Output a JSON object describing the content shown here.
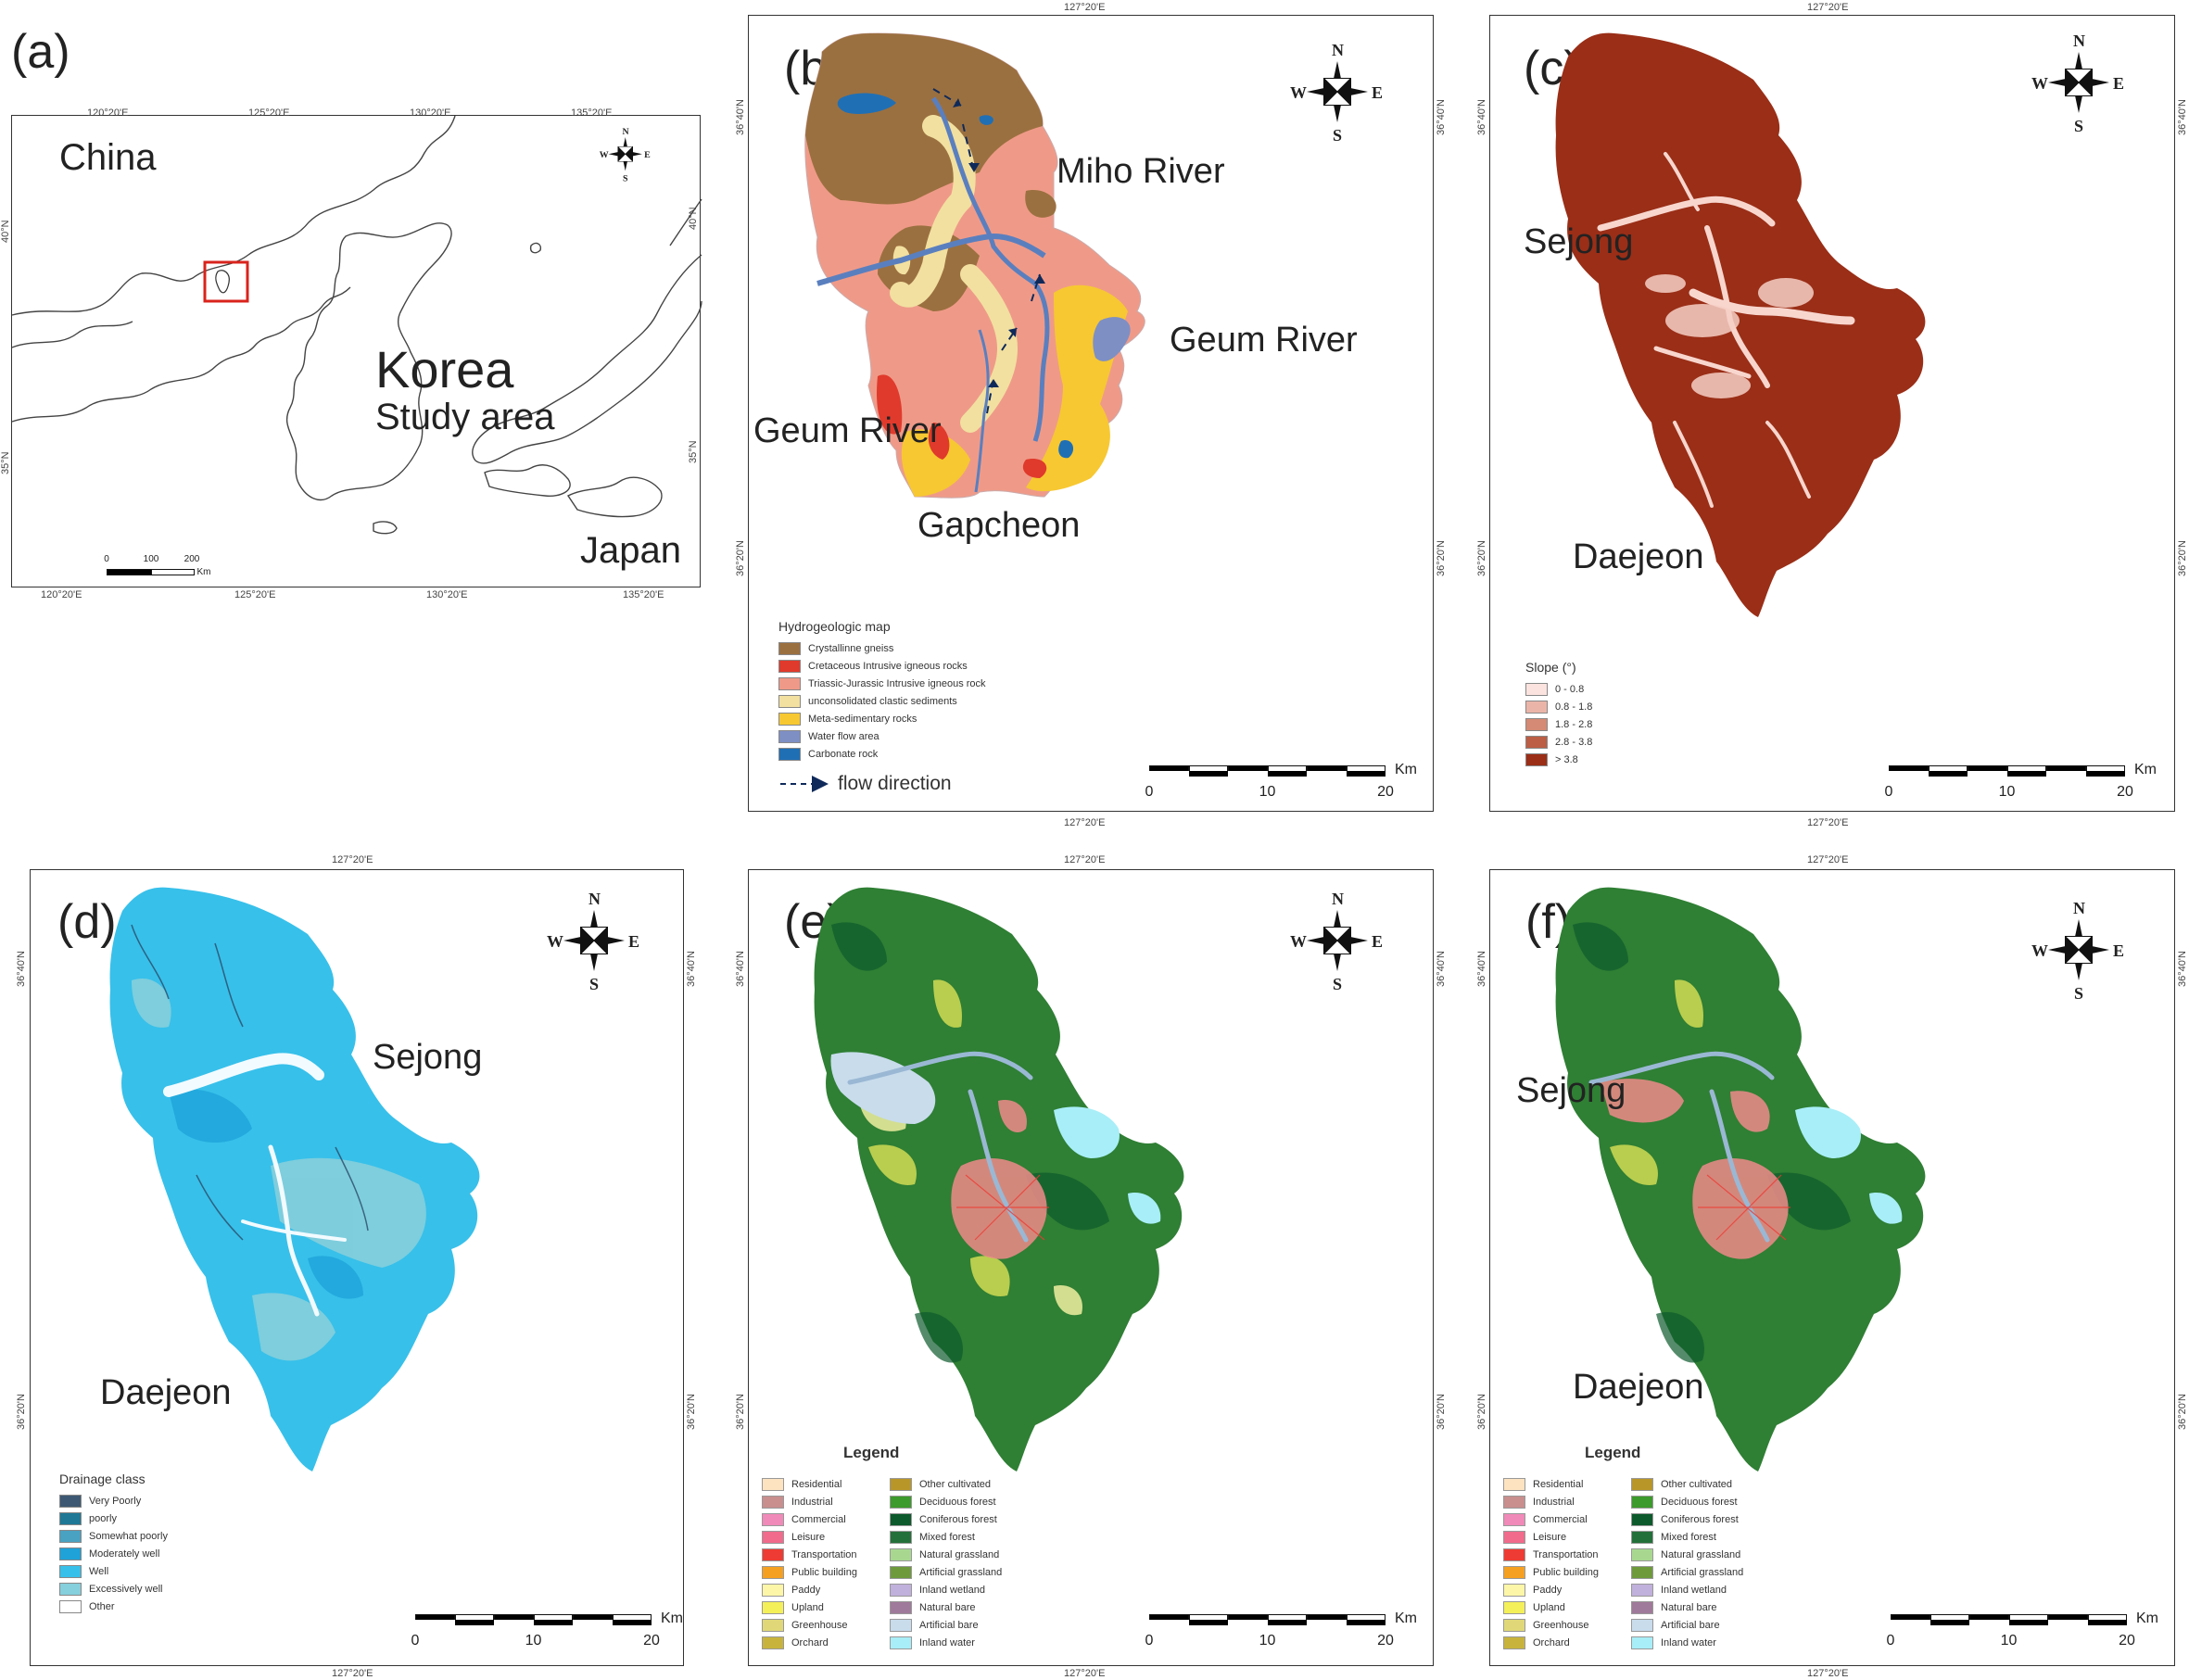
{
  "panels": {
    "a": {
      "label": "(a)",
      "places": {
        "china": "China",
        "korea": "Korea",
        "study_area": "Study area",
        "japan": "Japan"
      },
      "coords_top": [
        "120°20'E",
        "125°20'E",
        "130°20'E",
        "135°20'E"
      ],
      "coords_bottom": [
        "120°20'E",
        "125°20'E",
        "130°20'E",
        "135°20'E"
      ],
      "coords_left": [
        "40°N",
        "35°N"
      ],
      "coords_right": [
        "40°N",
        "35°N"
      ],
      "scale": {
        "ticks": [
          "0",
          "100",
          "200"
        ],
        "unit": "Km"
      }
    },
    "b": {
      "label": "(b)",
      "coord_top": "127°20'E",
      "coord_bottom": "127°20'E",
      "coords_left": [
        "36°40'N",
        "36°20'N"
      ],
      "coords_right": [
        "36°40'N",
        "36°20'N"
      ],
      "rivers": {
        "miho": "Miho River",
        "geum_east": "Geum River",
        "geum_west": "Geum River",
        "gapcheon": "Gapcheon"
      },
      "legend_title": "Hydrogeologic map",
      "legend": [
        {
          "label": "Crystallinne gneiss",
          "color": "#9b7040"
        },
        {
          "label": "Cretaceous Intrusive igneous rocks",
          "color": "#e03a2c"
        },
        {
          "label": "Triassic-Jurassic Intrusive igneous rock",
          "color": "#ef9a88"
        },
        {
          "label": "unconsolidated clastic sediments",
          "color": "#f2e0a0"
        },
        {
          "label": "Meta-sedimentary rocks",
          "color": "#f7c832"
        },
        {
          "label": "Water flow area",
          "color": "#7e8fc4"
        },
        {
          "label": "Carbonate rock",
          "color": "#1f6fb5"
        }
      ],
      "flow_label": "flow direction",
      "scale": {
        "ticks": [
          "0",
          "10",
          "20"
        ],
        "unit": "Km"
      }
    },
    "c": {
      "label": "(c)",
      "coord_top": "127°20'E",
      "coord_bottom": "127°20'E",
      "coords_left": [
        "36°40'N",
        "36°20'N"
      ],
      "coords_right": [
        "36°40'N",
        "36°20'N"
      ],
      "cities": {
        "sejong": "Sejong",
        "daejeon": "Daejeon"
      },
      "legend_title": "Slope (°)",
      "legend": [
        {
          "label": "0 - 0.8",
          "color": "#fbe3df"
        },
        {
          "label": "0.8 - 1.8",
          "color": "#eab5a8"
        },
        {
          "label": "1.8 - 2.8",
          "color": "#d48a74"
        },
        {
          "label": "2.8 - 3.8",
          "color": "#bb5e45"
        },
        {
          "label": "> 3.8",
          "color": "#9a2e17"
        }
      ],
      "scale": {
        "ticks": [
          "0",
          "10",
          "20"
        ],
        "unit": "Km"
      }
    },
    "d": {
      "label": "(d)",
      "coord_top": "127°20'E",
      "coord_bottom": "127°20'E",
      "coords_left": [
        "36°40'N",
        "36°20'N"
      ],
      "coords_right": [
        "36°40'N",
        "36°20'N"
      ],
      "cities": {
        "sejong": "Sejong",
        "daejeon": "Daejeon"
      },
      "legend_title": "Drainage class",
      "legend": [
        {
          "label": "Very Poorly",
          "color": "#3d5872"
        },
        {
          "label": "poorly",
          "color": "#1f7896"
        },
        {
          "label": "Somewhat poorly",
          "color": "#4aa2c2"
        },
        {
          "label": "Moderately well",
          "color": "#1ea2d8"
        },
        {
          "label": "Well",
          "color": "#37c0ea"
        },
        {
          "label": "Excessively well",
          "color": "#86cfdc"
        },
        {
          "label": "Other",
          "color": "#ffffff"
        }
      ],
      "scale": {
        "ticks": [
          "0",
          "10",
          "20"
        ],
        "unit": "Km"
      }
    },
    "e": {
      "label": "(e)",
      "coord_top": "127°20'E",
      "coord_bottom": "127°20'E",
      "coords_left": [
        "36°40'N",
        "36°20'N"
      ],
      "coords_right": [
        "36°40'N",
        "36°20'N"
      ],
      "scale": {
        "ticks": [
          "0",
          "10",
          "20"
        ],
        "unit": "Km"
      }
    },
    "f": {
      "label": "(f)",
      "coord_top": "127°20'E",
      "coord_bottom": "127°20'E",
      "coords_left": [
        "36°40'N",
        "36°20'N"
      ],
      "coords_right": [
        "36°40'N",
        "36°20'N"
      ],
      "cities": {
        "sejong": "Sejong",
        "daejeon": "Daejeon"
      },
      "scale": {
        "ticks": [
          "0",
          "10",
          "20"
        ],
        "unit": "Km"
      }
    }
  },
  "compass": {
    "n": "N",
    "s": "S",
    "e": "E",
    "w": "W"
  },
  "landuse_legend": {
    "title": "Legend",
    "col1": [
      {
        "label": "Residential",
        "color": "#fde3c0"
      },
      {
        "label": "Industrial",
        "color": "#c98e8e"
      },
      {
        "label": "Commercial",
        "color": "#f08ab8"
      },
      {
        "label": "Leisure",
        "color": "#f06b8c"
      },
      {
        "label": "Transportation",
        "color": "#ee3b33"
      },
      {
        "label": "Public building",
        "color": "#f5a020"
      },
      {
        "label": "Paddy",
        "color": "#fdf6a8"
      },
      {
        "label": "Upland",
        "color": "#f4f05a"
      },
      {
        "label": "Greenhouse",
        "color": "#e0d878"
      },
      {
        "label": "Orchard",
        "color": "#c8b43c"
      }
    ],
    "col2": [
      {
        "label": "Other cultivated",
        "color": "#b89628"
      },
      {
        "label": "Deciduous forest",
        "color": "#3d9a2c"
      },
      {
        "label": "Coniferous forest",
        "color": "#0d5a2c"
      },
      {
        "label": "Mixed forest",
        "color": "#24703a"
      },
      {
        "label": "Natural grassland",
        "color": "#a8d890"
      },
      {
        "label": "Artificial grassland",
        "color": "#6e9a3c"
      },
      {
        "label": "Inland wetland",
        "color": "#c0b0dc"
      },
      {
        "label": "Natural bare",
        "color": "#a07a9a"
      },
      {
        "label": "Artificial bare",
        "color": "#c8dcec"
      },
      {
        "label": "Inland water",
        "color": "#a8eef8"
      }
    ]
  }
}
